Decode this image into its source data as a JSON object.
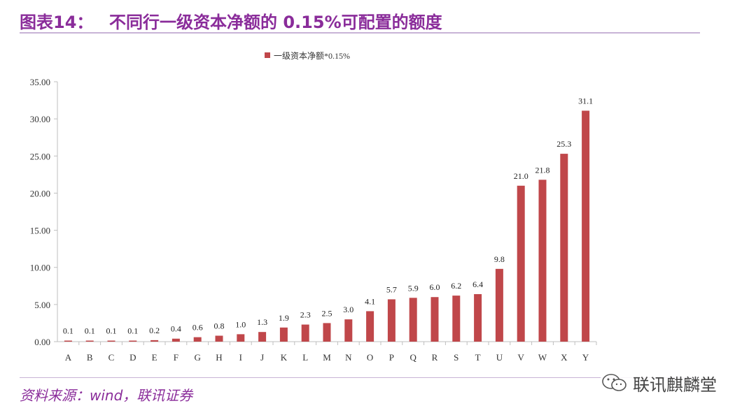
{
  "header": {
    "figure_label": "图表14：",
    "title": "不同行一级资本净额的 0.15%可配置的额度"
  },
  "footer": {
    "source": "资料来源：wind，联讯证券"
  },
  "watermark": {
    "text": "联讯麒麟堂",
    "icon": "wechat-icon"
  },
  "colors": {
    "title": "#8a2c9a",
    "bar": "#c0474a",
    "axis": "#bfbfbf"
  },
  "chart_data": {
    "type": "bar",
    "categories": [
      "A",
      "B",
      "C",
      "D",
      "E",
      "F",
      "G",
      "H",
      "I",
      "J",
      "K",
      "L",
      "M",
      "N",
      "O",
      "P",
      "Q",
      "R",
      "S",
      "T",
      "U",
      "V",
      "W",
      "X",
      "Y"
    ],
    "series": [
      {
        "name": "一级资本净额*0.15%",
        "values": [
          0.1,
          0.1,
          0.1,
          0.1,
          0.2,
          0.4,
          0.6,
          0.8,
          1.0,
          1.3,
          1.9,
          2.3,
          2.5,
          3.0,
          4.1,
          5.7,
          5.9,
          6.0,
          6.2,
          6.4,
          9.8,
          21.0,
          21.8,
          25.3,
          31.1
        ],
        "labels": [
          "0.1",
          "0.1",
          "0.1",
          "0.1",
          "0.2",
          "0.4",
          "0.6",
          "0.8",
          "1.0",
          "1.3",
          "1.9",
          "2.3",
          "2.5",
          "3.0",
          "4.1",
          "5.7",
          "5.9",
          "6.0",
          "6.2",
          "6.4",
          "9.8",
          "21.0",
          "21.8",
          "25.3",
          "31.1"
        ]
      }
    ],
    "ylim": [
      0,
      35
    ],
    "yticks": [
      "0.00",
      "5.00",
      "10.00",
      "15.00",
      "20.00",
      "25.00",
      "30.00",
      "35.00"
    ],
    "legend_position": "top-center",
    "grid": false
  }
}
